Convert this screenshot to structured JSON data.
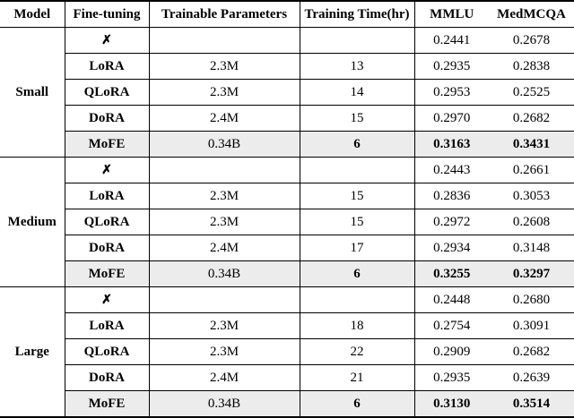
{
  "table": {
    "headers": {
      "model": "Model",
      "method": "Fine-tuning",
      "params": "Trainable Parameters",
      "time": "Training Time(hr)",
      "mmlu": "MMLU",
      "medmcqa": "MedMCQA"
    },
    "highlight_color": "#ececec",
    "no_finetuning_symbol": "✗",
    "groups": [
      {
        "model": "Small",
        "rows": [
          {
            "method": "✗",
            "params": "",
            "time": "",
            "mmlu": "0.2441",
            "medmcqa": "0.2678"
          },
          {
            "method": "LoRA",
            "params": "2.3M",
            "time": "13",
            "mmlu": "0.2935",
            "medmcqa": "0.2838"
          },
          {
            "method": "QLoRA",
            "params": "2.3M",
            "time": "14",
            "mmlu": "0.2953",
            "medmcqa": "0.2525"
          },
          {
            "method": "DoRA",
            "params": "2.4M",
            "time": "15",
            "mmlu": "0.2970",
            "medmcqa": "0.2682"
          },
          {
            "method": "MoFE",
            "params": "0.34B",
            "time": "6",
            "mmlu": "0.3163",
            "medmcqa": "0.3431"
          }
        ]
      },
      {
        "model": "Medium",
        "rows": [
          {
            "method": "✗",
            "params": "",
            "time": "",
            "mmlu": "0.2443",
            "medmcqa": "0.2661"
          },
          {
            "method": "LoRA",
            "params": "2.3M",
            "time": "15",
            "mmlu": "0.2836",
            "medmcqa": "0.3053"
          },
          {
            "method": "QLoRA",
            "params": "2.3M",
            "time": "15",
            "mmlu": "0.2972",
            "medmcqa": "0.2608"
          },
          {
            "method": "DoRA",
            "params": "2.4M",
            "time": "17",
            "mmlu": "0.2934",
            "medmcqa": "0.3148"
          },
          {
            "method": "MoFE",
            "params": "0.34B",
            "time": "6",
            "mmlu": "0.3255",
            "medmcqa": "0.3297"
          }
        ]
      },
      {
        "model": "Large",
        "rows": [
          {
            "method": "✗",
            "params": "",
            "time": "",
            "mmlu": "0.2448",
            "medmcqa": "0.2680"
          },
          {
            "method": "LoRA",
            "params": "2.3M",
            "time": "18",
            "mmlu": "0.2754",
            "medmcqa": "0.3091"
          },
          {
            "method": "QLoRA",
            "params": "2.3M",
            "time": "22",
            "mmlu": "0.2909",
            "medmcqa": "0.2682"
          },
          {
            "method": "DoRA",
            "params": "2.4M",
            "time": "21",
            "mmlu": "0.2935",
            "medmcqa": "0.2639"
          },
          {
            "method": "MoFE",
            "params": "0.34B",
            "time": "6",
            "mmlu": "0.3130",
            "medmcqa": "0.3514"
          }
        ]
      }
    ]
  }
}
